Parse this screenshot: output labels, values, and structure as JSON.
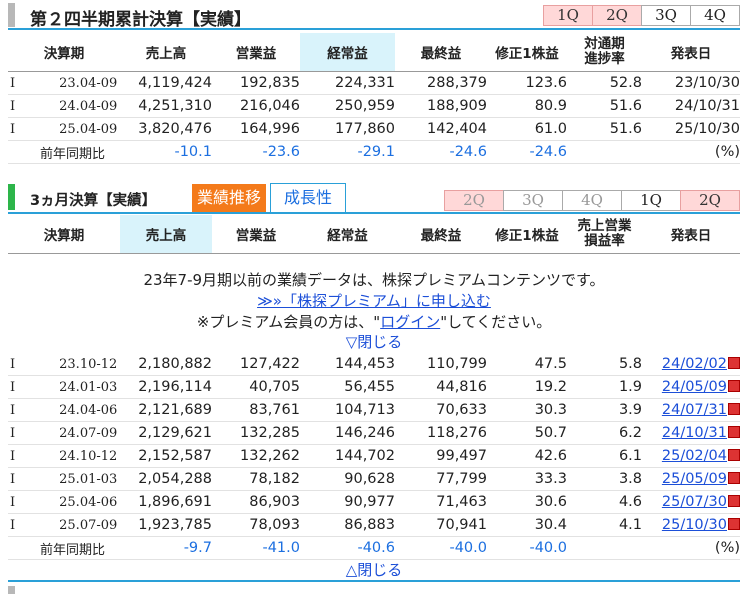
{
  "q_section": {
    "title": "第２四半期累計決算【実績】",
    "tabs": [
      "1Q",
      "2Q",
      "3Q",
      "4Q"
    ],
    "headers": [
      "決算期",
      "売上高",
      "営業益",
      "経常益",
      "最終益",
      "修正1株益",
      "対通期進捗率",
      "発表日"
    ],
    "header_line1": "対通期",
    "header_line2": "進捗率",
    "rows": [
      {
        "mark": "I",
        "period": "23.04-09",
        "sales": "4,119,424",
        "op": "192,835",
        "ord": "224,331",
        "net": "288,379",
        "eps": "123.6",
        "rate": "52.8",
        "date": "23/10/30"
      },
      {
        "mark": "I",
        "period": "24.04-09",
        "sales": "4,251,310",
        "op": "216,046",
        "ord": "250,959",
        "net": "188,909",
        "eps": "80.9",
        "rate": "51.6",
        "date": "24/10/31"
      },
      {
        "mark": "I",
        "period": "25.04-09",
        "sales": "3,820,476",
        "op": "164,996",
        "ord": "177,860",
        "net": "142,404",
        "eps": "61.0",
        "rate": "51.6",
        "date": "25/10/30"
      }
    ],
    "yoy": {
      "label": "前年同期比",
      "sales": "-10.1",
      "op": "-23.6",
      "ord": "-29.1",
      "net": "-24.6",
      "eps": "-24.6",
      "unit": "(%)"
    }
  },
  "m_section": {
    "title": "3ヵ月決算【実績】",
    "tab_results": "業績推移",
    "tab_growth": "成長性",
    "qtabs": [
      "2Q",
      "3Q",
      "4Q",
      "1Q",
      "2Q"
    ],
    "headers": [
      "決算期",
      "売上高",
      "営業益",
      "経常益",
      "最終益",
      "修正1株益",
      "売上営業損益率",
      "発表日"
    ],
    "header_line1": "売上営業",
    "header_line2": "損益率",
    "notice_line1": "23年7-9月期以前の業績データは、株探プレミアムコンテンツです。",
    "notice_link": "≫»「株探プレミアム」に申し込む",
    "notice_line3_pre": "※プレミアム会員の方は、\"",
    "notice_login": "ログイン",
    "notice_line3_post": "\"してください。",
    "close_top": "▽閉じる",
    "rows": [
      {
        "mark": "I",
        "period": "23.10-12",
        "sales": "2,180,882",
        "op": "127,422",
        "ord": "144,453",
        "net": "110,799",
        "eps": "47.5",
        "rate": "5.8",
        "date": "24/02/02"
      },
      {
        "mark": "I",
        "period": "24.01-03",
        "sales": "2,196,114",
        "op": "40,705",
        "ord": "56,455",
        "net": "44,816",
        "eps": "19.2",
        "rate": "1.9",
        "date": "24/05/09"
      },
      {
        "mark": "I",
        "period": "24.04-06",
        "sales": "2,121,689",
        "op": "83,761",
        "ord": "104,713",
        "net": "70,633",
        "eps": "30.3",
        "rate": "3.9",
        "date": "24/07/31"
      },
      {
        "mark": "I",
        "period": "24.07-09",
        "sales": "2,129,621",
        "op": "132,285",
        "ord": "146,246",
        "net": "118,276",
        "eps": "50.7",
        "rate": "6.2",
        "date": "24/10/31"
      },
      {
        "mark": "I",
        "period": "24.10-12",
        "sales": "2,152,587",
        "op": "132,262",
        "ord": "144,702",
        "net": "99,497",
        "eps": "42.6",
        "rate": "6.1",
        "date": "25/02/04"
      },
      {
        "mark": "I",
        "period": "25.01-03",
        "sales": "2,054,288",
        "op": "78,182",
        "ord": "90,628",
        "net": "77,799",
        "eps": "33.3",
        "rate": "3.8",
        "date": "25/05/09"
      },
      {
        "mark": "I",
        "period": "25.04-06",
        "sales": "1,896,691",
        "op": "86,903",
        "ord": "90,977",
        "net": "71,463",
        "eps": "30.6",
        "rate": "4.6",
        "date": "25/07/30"
      },
      {
        "mark": "I",
        "period": "25.07-09",
        "sales": "1,923,785",
        "op": "78,093",
        "ord": "86,883",
        "net": "70,941",
        "eps": "30.4",
        "rate": "4.1",
        "date": "25/10/30"
      }
    ],
    "yoy": {
      "label": "前年同期比",
      "sales": "-9.7",
      "op": "-41.0",
      "ord": "-40.6",
      "net": "-40.0",
      "eps": "-40.0",
      "unit": "(%)"
    },
    "close_bottom": "△閉じる"
  },
  "colors": {
    "accent": "#2aa0d8",
    "orange_tab": "#f47a1a",
    "green_bar": "#2db54a",
    "highlight": "#d9f3fb",
    "blue_text": "#1c6fe0"
  }
}
